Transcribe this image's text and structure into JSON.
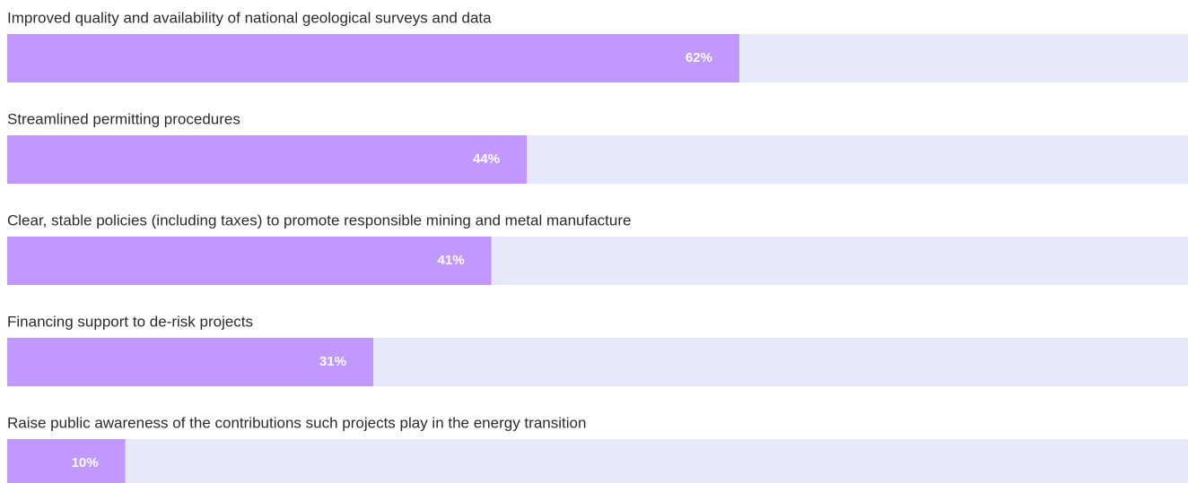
{
  "chart_data": {
    "type": "bar",
    "orientation": "horizontal",
    "categories": [
      "Improved quality and availability of national geological surveys and data",
      "Streamlined permitting procedures",
      "Clear, stable policies (including taxes) to promote responsible mining and metal manufacture",
      "Financing support to de-risk projects",
      "Raise public awareness of the contributions such projects play in the energy transition"
    ],
    "values": [
      62,
      44,
      41,
      31,
      10
    ],
    "value_labels": [
      "62%",
      "44%",
      "41%",
      "31%",
      "10%"
    ],
    "color": "#c198fd",
    "track_color": "#e6e9fa",
    "xlim": [
      0,
      100
    ]
  }
}
